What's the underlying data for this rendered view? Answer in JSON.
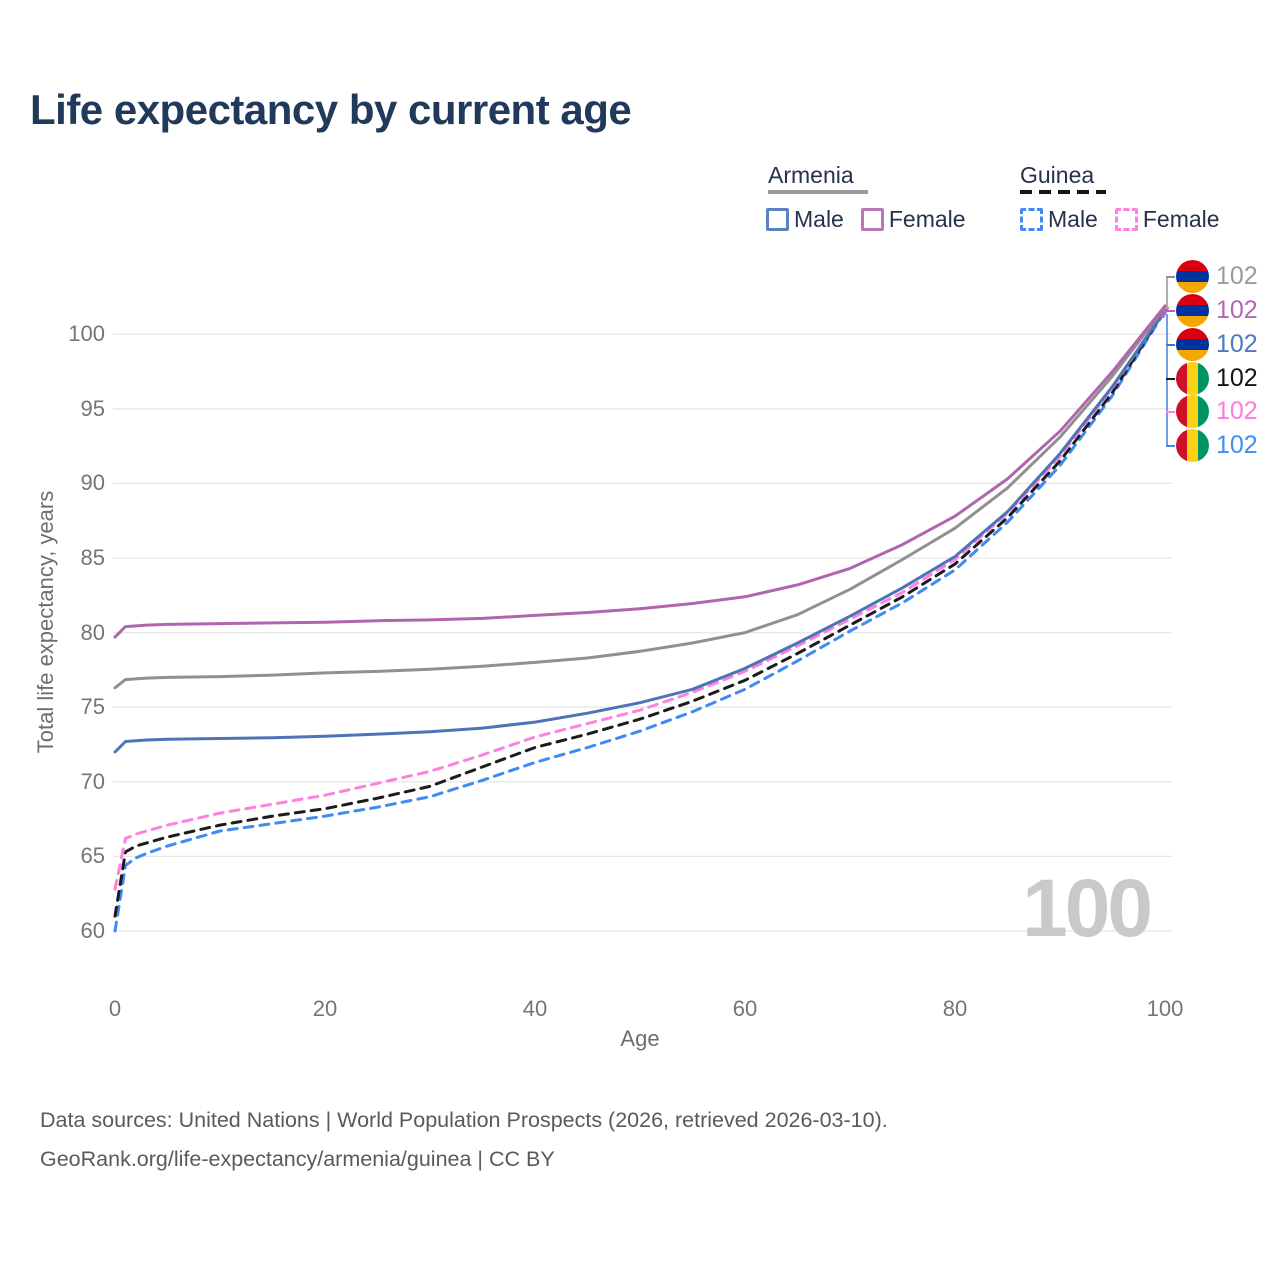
{
  "header": {
    "title": "Life expectancy by current age"
  },
  "legend": {
    "groups": [
      {
        "country": "Armenia",
        "line_style": "solid",
        "underline_color": "#9a9a9a",
        "items": [
          {
            "label": "Male",
            "color": "#5b82c0",
            "dashed": false
          },
          {
            "label": "Female",
            "color": "#b878b8",
            "dashed": false
          }
        ]
      },
      {
        "country": "Guinea",
        "line_style": "dashed",
        "underline_color": "#1a1a1a",
        "items": [
          {
            "label": "Male",
            "color": "#3f8bf2",
            "dashed": true
          },
          {
            "label": "Female",
            "color": "#ff80df",
            "dashed": true
          }
        ]
      }
    ]
  },
  "watermark": {
    "age": "100"
  },
  "footer": {
    "line1": "Data sources: United Nations | World Population Prospects (2026, retrieved 2026-03-10).",
    "line2": "GeoRank.org/life-expectancy/armenia/guinea | CC BY"
  },
  "chart_data": {
    "type": "line",
    "title": "Life expectancy by current age",
    "xlabel": "Age",
    "ylabel": "Total life expectancy, years",
    "xlim": [
      0,
      100
    ],
    "ylim": [
      59,
      103
    ],
    "xticks": [
      0,
      20,
      40,
      60,
      80,
      100
    ],
    "yticks": [
      60,
      65,
      70,
      75,
      80,
      85,
      90,
      95,
      100
    ],
    "grid": "horizontal",
    "legend_position": "top-right",
    "x": [
      0,
      1,
      2,
      3,
      5,
      10,
      15,
      20,
      25,
      30,
      35,
      40,
      45,
      50,
      55,
      60,
      65,
      70,
      75,
      80,
      85,
      90,
      95,
      100
    ],
    "series": [
      {
        "name": "Armenia",
        "flag": "armenia",
        "color": "#909090",
        "dashed": false,
        "end_label": "102",
        "end_label_color": "#9a9a9a",
        "values": [
          76.3,
          76.85,
          76.9,
          76.95,
          77.0,
          77.05,
          77.15,
          77.3,
          77.4,
          77.55,
          77.75,
          78.0,
          78.3,
          78.75,
          79.3,
          80.0,
          81.2,
          82.9,
          84.9,
          87.0,
          89.7,
          93.1,
          97.2,
          101.8
        ]
      },
      {
        "name": "Armenia Female",
        "flag": "armenia",
        "color": "#b066ae",
        "dashed": false,
        "end_label": "102",
        "end_label_color": "#b168b1",
        "values": [
          79.7,
          80.4,
          80.45,
          80.5,
          80.55,
          80.6,
          80.65,
          80.7,
          80.8,
          80.85,
          80.95,
          81.15,
          81.35,
          81.6,
          81.95,
          82.4,
          83.2,
          84.3,
          85.9,
          87.8,
          90.3,
          93.5,
          97.5,
          101.9
        ]
      },
      {
        "name": "Armenia Male",
        "flag": "armenia",
        "color": "#4d74b5",
        "dashed": false,
        "end_label": "102",
        "end_label_color": "#4d79c2",
        "values": [
          72.0,
          72.7,
          72.75,
          72.8,
          72.85,
          72.9,
          72.95,
          73.05,
          73.2,
          73.35,
          73.6,
          74.0,
          74.6,
          75.3,
          76.2,
          77.6,
          79.3,
          81.1,
          83.0,
          85.1,
          88.1,
          92.0,
          96.5,
          101.6
        ]
      },
      {
        "name": "Guinea",
        "flag": "guinea",
        "color": "#1c1c1c",
        "dashed": true,
        "end_label": "102",
        "end_label_color": "#141414",
        "values": [
          61.0,
          65.3,
          65.7,
          65.9,
          66.3,
          67.1,
          67.7,
          68.2,
          68.9,
          69.7,
          71.0,
          72.3,
          73.2,
          74.2,
          75.4,
          76.8,
          78.6,
          80.5,
          82.4,
          84.6,
          87.7,
          91.5,
          96.1,
          101.65
        ]
      },
      {
        "name": "Guinea Female",
        "flag": "guinea",
        "color": "#ff80df",
        "dashed": true,
        "end_label": "102",
        "end_label_color": "#ff7ade",
        "values": [
          62.8,
          66.2,
          66.5,
          66.7,
          67.1,
          67.9,
          68.5,
          69.1,
          69.9,
          70.7,
          71.8,
          73.0,
          73.9,
          74.8,
          76.0,
          77.4,
          79.1,
          80.9,
          82.7,
          84.9,
          88.0,
          91.8,
          96.4,
          101.7
        ]
      },
      {
        "name": "Guinea Male",
        "flag": "guinea",
        "color": "#3f8bf2",
        "dashed": true,
        "end_label": "102",
        "end_label_color": "#3e8ef7",
        "values": [
          60.0,
          64.4,
          64.9,
          65.2,
          65.7,
          66.7,
          67.2,
          67.7,
          68.3,
          69.0,
          70.1,
          71.3,
          72.3,
          73.4,
          74.7,
          76.2,
          78.1,
          80.1,
          82.0,
          84.2,
          87.4,
          91.2,
          95.9,
          101.55
        ]
      }
    ]
  }
}
